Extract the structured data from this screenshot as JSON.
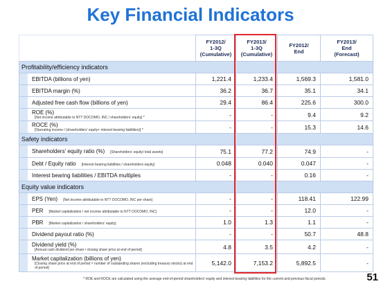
{
  "header": {
    "title": "Key Financial Indicators"
  },
  "table": {
    "columns": [
      {
        "lines": [
          "FY2012/",
          "1-3Q",
          "(Cumulative)"
        ]
      },
      {
        "lines": [
          "FY2013/",
          "1-3Q",
          "(Cumulative)"
        ]
      },
      {
        "lines": [
          "FY2012/",
          "End"
        ]
      },
      {
        "lines": [
          "FY2013/",
          "End",
          "(Forecast)"
        ]
      }
    ],
    "sections": [
      {
        "title": "Profitability/efficiency indicators",
        "rows": [
          {
            "label": "EBITDA (billions of yen)",
            "values": [
              "1,221.4",
              "1,233.4",
              "1,569.3",
              "1,581.0"
            ]
          },
          {
            "label": "EBITDA margin (%)",
            "values": [
              "36.2",
              "36.7",
              "35.1",
              "34.1"
            ]
          },
          {
            "label": "Adjusted free cash flow (billions of yen)",
            "values": [
              "29.4",
              "86.4",
              "225.6",
              "300.0"
            ]
          },
          {
            "label": "ROE (%)",
            "note": "[Net income attributable to NTT DOCOMO, INC / shareholders' equity]  *",
            "values": [
              "-",
              "-",
              "9.4",
              "9.2"
            ]
          },
          {
            "label": "ROCE (%)",
            "note": "[Operating income / (shareholders' equity+ interest bearing liabilities)] *",
            "values": [
              "-",
              "-",
              "15.3",
              "14.6"
            ]
          }
        ]
      },
      {
        "title": "Safety indicators",
        "rows": [
          {
            "label": "Shareholders' equity ratio (%)",
            "note": "[Shareholders' equity/ total assets]",
            "inline": true,
            "values": [
              "75.1",
              "77.2",
              "74.9",
              "-"
            ]
          },
          {
            "label": "Debt / Equity ratio",
            "note": "[Interest bearing liabilities / shareholders equity]",
            "inline": true,
            "values": [
              "0.048",
              "0.040",
              "0.047",
              "-"
            ]
          },
          {
            "label": "Interest bearing liabilities / EBITDA multiples",
            "values": [
              "-",
              "-",
              "0.16",
              "-"
            ]
          }
        ]
      },
      {
        "title": "Equity value indicators",
        "rows": [
          {
            "label": "EPS (Yen)",
            "note": "[Net income attributable to NTT DOCOMO, INC per share]",
            "inline": true,
            "values": [
              "-",
              "-",
              "118.41",
              "122.99"
            ]
          },
          {
            "label": "PER",
            "note": "[Market capitalization / net income attributable to NTT DOCOMO, INC]",
            "inline": true,
            "values": [
              "-",
              "-",
              "12.0",
              "-"
            ]
          },
          {
            "label": "PBR",
            "note": "[Market capitalization / shareholders' equity]",
            "inline": true,
            "values": [
              "1.0",
              "1.3",
              "1.1",
              "-"
            ]
          },
          {
            "label": "Dividend payout ratio (%)",
            "values": [
              "-",
              "-",
              "50.7",
              "48.8"
            ]
          },
          {
            "label": "Dividend yield (%)",
            "note": "[Annual cash dividend per share / closing share price at end of period]",
            "values": [
              "4.8",
              "3.5",
              "4.2",
              "-"
            ]
          },
          {
            "label": "Market capitalization (billions of yen)",
            "note": "[Closing share price at end of period × number of outstanding shares (excluding treasury stocks) at end of period]",
            "values": [
              "5,142.0",
              "7,153.2",
              "5,892.5",
              "-"
            ]
          }
        ]
      }
    ]
  },
  "footnote": "* ROE and ROCE are calculated using the average end-of-period shareholders' equity and interest bearing liabilities for the current and previous fiscal periods.",
  "page_number": "51"
}
